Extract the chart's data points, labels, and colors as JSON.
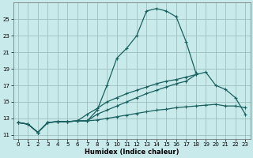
{
  "xlabel": "Humidex (Indice chaleur)",
  "bg_color": "#c8eaea",
  "grid_color": "#9bbfbf",
  "line_color": "#1a6060",
  "xlim": [
    -0.5,
    23.5
  ],
  "ylim": [
    10.5,
    27.0
  ],
  "xticks": [
    0,
    1,
    2,
    3,
    4,
    5,
    6,
    7,
    8,
    9,
    10,
    11,
    12,
    13,
    14,
    15,
    16,
    17,
    18,
    19,
    20,
    21,
    22,
    23
  ],
  "yticks": [
    11,
    13,
    15,
    17,
    19,
    21,
    23,
    25
  ],
  "lines": [
    {
      "x": [
        0,
        1,
        2,
        3,
        4,
        5,
        6,
        7,
        8,
        9,
        10,
        11,
        12,
        13,
        14,
        15,
        16,
        17,
        18
      ],
      "y": [
        12.5,
        12.3,
        11.3,
        12.5,
        12.6,
        12.6,
        12.7,
        12.7,
        14.0,
        17.0,
        20.3,
        21.5,
        23.0,
        26.0,
        26.3,
        26.0,
        25.3,
        22.3,
        18.5
      ]
    },
    {
      "x": [
        0,
        1,
        2,
        3,
        4,
        5,
        6,
        7,
        8,
        9,
        10,
        11,
        12,
        13,
        14,
        15,
        16,
        17,
        18,
        19,
        20,
        21,
        22,
        23
      ],
      "y": [
        12.5,
        12.3,
        11.3,
        12.5,
        12.6,
        12.6,
        12.7,
        13.5,
        14.2,
        15.0,
        15.5,
        16.0,
        16.4,
        16.8,
        17.2,
        17.5,
        17.7,
        18.0,
        18.3,
        18.6,
        17.0,
        16.5,
        15.5,
        13.5
      ]
    },
    {
      "x": [
        0,
        1,
        2,
        3,
        4,
        5,
        6,
        7,
        8,
        9,
        10,
        11,
        12,
        13,
        14,
        15,
        16,
        17,
        18,
        19,
        20,
        21,
        22,
        23
      ],
      "y": [
        12.5,
        12.3,
        11.3,
        12.5,
        12.6,
        12.6,
        12.7,
        12.7,
        12.8,
        13.0,
        13.2,
        13.4,
        13.6,
        13.8,
        14.0,
        14.1,
        14.3,
        14.4,
        14.5,
        14.6,
        14.7,
        14.5,
        14.5,
        14.3
      ]
    },
    {
      "x": [
        0,
        1,
        2,
        3,
        4,
        5,
        6,
        7,
        8,
        9,
        10,
        11,
        12,
        13,
        14,
        15,
        16,
        17,
        18,
        19,
        20,
        21,
        22,
        23
      ],
      "y": [
        12.5,
        12.3,
        11.3,
        12.5,
        12.6,
        12.6,
        12.7,
        12.7,
        13.5,
        14.0,
        14.5,
        15.0,
        15.5,
        16.0,
        16.4,
        16.8,
        17.2,
        17.5,
        18.3,
        null,
        null,
        null,
        null,
        null
      ]
    }
  ]
}
